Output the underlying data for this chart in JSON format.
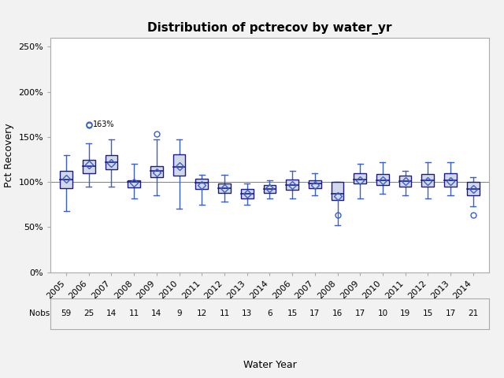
{
  "title": "Distribution of pctrecov by water_yr",
  "xlabel": "Water Year",
  "ylabel": "Pct Recovery",
  "background_color": "#f2f2f2",
  "plot_background": "#ffffff",
  "ylim": [
    0.0,
    2.6
  ],
  "yticks": [
    0.0,
    0.5,
    1.0,
    1.5,
    2.0,
    2.5
  ],
  "ytick_labels": [
    "0%",
    "50%",
    "100%",
    "150%",
    "200%",
    "250%"
  ],
  "reference_line": 1.0,
  "categories": [
    "2005",
    "2006",
    "2007",
    "2008",
    "2009",
    "2010",
    "2011",
    "2012",
    "2013",
    "2014",
    "2006",
    "2007",
    "2008",
    "2009",
    "2010",
    "2011",
    "2012",
    "2013",
    "2014"
  ],
  "nobs": [
    59,
    25,
    14,
    11,
    14,
    9,
    12,
    11,
    13,
    6,
    15,
    17,
    16,
    17,
    10,
    19,
    15,
    17,
    21
  ],
  "boxes": [
    {
      "q1": 0.93,
      "median": 1.03,
      "q3": 1.12,
      "mean": 1.04,
      "whisker_low": 0.68,
      "whisker_high": 1.3,
      "outliers": []
    },
    {
      "q1": 1.1,
      "median": 1.18,
      "q3": 1.25,
      "mean": 1.19,
      "whisker_low": 0.95,
      "whisker_high": 1.43,
      "outliers": [
        1.63,
        1.64
      ]
    },
    {
      "q1": 1.14,
      "median": 1.22,
      "q3": 1.3,
      "mean": 1.21,
      "whisker_low": 0.95,
      "whisker_high": 1.47,
      "outliers": []
    },
    {
      "q1": 0.94,
      "median": 1.0,
      "q3": 1.02,
      "mean": 0.99,
      "whisker_low": 0.82,
      "whisker_high": 1.2,
      "outliers": []
    },
    {
      "q1": 1.05,
      "median": 1.12,
      "q3": 1.18,
      "mean": 1.11,
      "whisker_low": 0.85,
      "whisker_high": 1.47,
      "outliers": [
        1.53
      ]
    },
    {
      "q1": 1.07,
      "median": 1.17,
      "q3": 1.31,
      "mean": 1.18,
      "whisker_low": 0.7,
      "whisker_high": 1.47,
      "outliers": []
    },
    {
      "q1": 0.92,
      "median": 0.99,
      "q3": 1.04,
      "mean": 0.97,
      "whisker_low": 0.75,
      "whisker_high": 1.08,
      "outliers": []
    },
    {
      "q1": 0.88,
      "median": 0.93,
      "q3": 0.98,
      "mean": 0.93,
      "whisker_low": 0.78,
      "whisker_high": 1.08,
      "outliers": []
    },
    {
      "q1": 0.82,
      "median": 0.87,
      "q3": 0.92,
      "mean": 0.87,
      "whisker_low": 0.75,
      "whisker_high": 0.98,
      "outliers": []
    },
    {
      "q1": 0.88,
      "median": 0.92,
      "q3": 0.97,
      "mean": 0.93,
      "whisker_low": 0.82,
      "whisker_high": 1.02,
      "outliers": []
    },
    {
      "q1": 0.91,
      "median": 0.97,
      "q3": 1.03,
      "mean": 0.97,
      "whisker_low": 0.82,
      "whisker_high": 1.12,
      "outliers": []
    },
    {
      "q1": 0.93,
      "median": 0.98,
      "q3": 1.02,
      "mean": 0.97,
      "whisker_low": 0.85,
      "whisker_high": 1.1,
      "outliers": []
    },
    {
      "q1": 0.8,
      "median": 0.87,
      "q3": 1.0,
      "mean": 0.84,
      "whisker_low": 0.52,
      "whisker_high": 1.0,
      "outliers": [
        0.63
      ]
    },
    {
      "q1": 0.98,
      "median": 1.03,
      "q3": 1.1,
      "mean": 1.02,
      "whisker_low": 0.82,
      "whisker_high": 1.2,
      "outliers": []
    },
    {
      "q1": 0.97,
      "median": 1.02,
      "q3": 1.09,
      "mean": 1.02,
      "whisker_low": 0.87,
      "whisker_high": 1.22,
      "outliers": []
    },
    {
      "q1": 0.95,
      "median": 1.01,
      "q3": 1.07,
      "mean": 1.01,
      "whisker_low": 0.85,
      "whisker_high": 1.12,
      "outliers": []
    },
    {
      "q1": 0.95,
      "median": 1.02,
      "q3": 1.09,
      "mean": 1.01,
      "whisker_low": 0.82,
      "whisker_high": 1.22,
      "outliers": []
    },
    {
      "q1": 0.95,
      "median": 1.02,
      "q3": 1.1,
      "mean": 1.01,
      "whisker_low": 0.85,
      "whisker_high": 1.22,
      "outliers": []
    },
    {
      "q1": 0.85,
      "median": 0.92,
      "q3": 1.0,
      "mean": 0.92,
      "whisker_low": 0.73,
      "whisker_high": 1.05,
      "outliers": [
        0.63
      ]
    }
  ],
  "box_color": "#d3d8e8",
  "box_edge_color": "#1a1a8c",
  "whisker_color": "#3a5fc8",
  "median_color": "#1a1a8c",
  "mean_marker_color": "#3a5fc8",
  "outlier_color": "#3a5fc8",
  "title_fontsize": 11,
  "axis_fontsize": 9,
  "tick_fontsize": 8,
  "nobs_fontsize": 7.5
}
